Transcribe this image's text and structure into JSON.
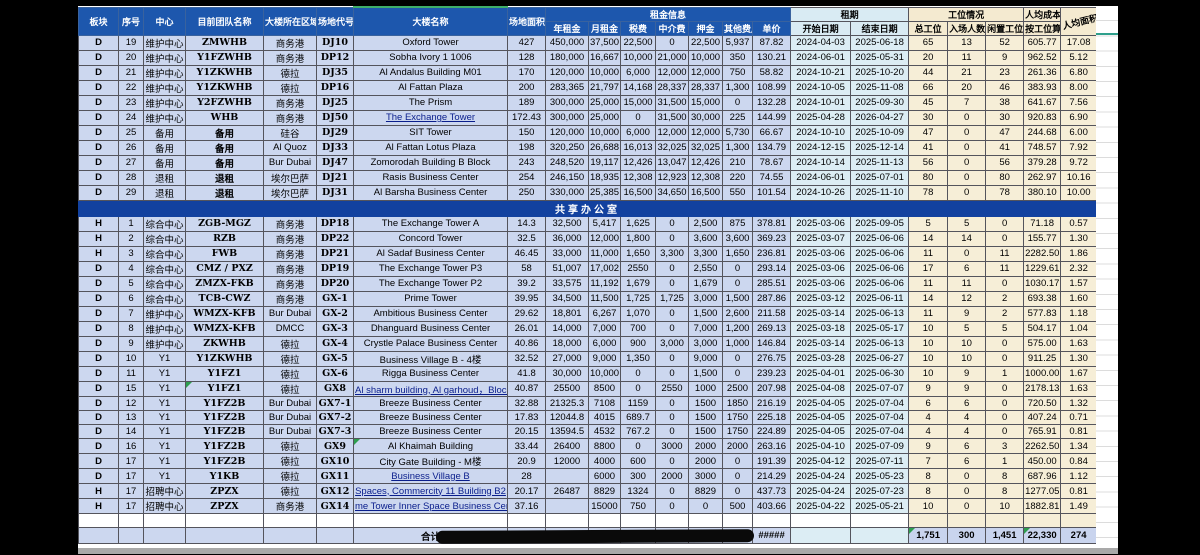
{
  "colors": {
    "header_blue": "#1d57ad",
    "separator_blue": "#12419f",
    "row_lavender": "#ccd7ef",
    "date_pale_blue": "#dcedf4",
    "seat_cream": "#f6eed7",
    "note_green": "#2e9e4f"
  },
  "sheet": {
    "header": {
      "col_bankuai": "板块",
      "col_xuhao": "序号",
      "col_zhongxin": "中心",
      "col_team": "目前团队名称",
      "col_region": "大楼所在区域",
      "col_code": "场地代号",
      "col_building": "大楼名称",
      "col_area": "场地面积",
      "group_rent": "租金信息",
      "col_annual": "年租金",
      "col_monthly": "月租金",
      "col_tax": "税费",
      "col_agency": "中介费",
      "col_deposit": "押金",
      "col_other": "其他费用",
      "col_unit": "单价",
      "group_term": "租期",
      "col_start": "开始日期",
      "col_end": "结束日期",
      "group_seats": "工位情况",
      "col_total_seats": "总工位",
      "col_people": "入场人数",
      "col_idle": "闲置工位",
      "group_cost": "人均成本",
      "col_per_seat": "按工位算",
      "col_area_pp": "人均面积"
    },
    "separator_label": "共享办公室",
    "d_rows": [
      {
        "cells": [
          "D",
          "19",
          "维护中心",
          "ZMWHB",
          "商务港",
          "DJ10",
          "Oxford Tower",
          "427",
          "450,000",
          "37,500",
          "22,500",
          "0",
          "22,500",
          "5,937",
          "87.82",
          "2024-04-03",
          "2025-06-18",
          "65",
          "13",
          "52",
          "605.77",
          "17.08"
        ],
        "link": false
      },
      {
        "cells": [
          "D",
          "20",
          "维护中心",
          "Y1FZWHB",
          "商务港",
          "DP12",
          "Sobha Ivory 1 1006",
          "128",
          "180,000",
          "16,667",
          "10,000",
          "21,000",
          "10,000",
          "350",
          "130.21",
          "2024-06-01",
          "2025-05-31",
          "20",
          "11",
          "9",
          "962.52",
          "5.12"
        ],
        "link": false
      },
      {
        "cells": [
          "D",
          "21",
          "维护中心",
          "Y1ZKWHB",
          "德拉",
          "DJ35",
          "Al Andalus Building M01",
          "170",
          "120,000",
          "10,000",
          "6,000",
          "12,000",
          "12,000",
          "750",
          "58.82",
          "2024-10-21",
          "2025-10-20",
          "44",
          "21",
          "23",
          "261.36",
          "6.80"
        ],
        "link": false
      },
      {
        "cells": [
          "D",
          "22",
          "维护中心",
          "Y1ZKWHB",
          "德拉",
          "DP16",
          "Al Fattan Plaza",
          "200",
          "283,365",
          "21,797",
          "14,168",
          "28,337",
          "28,337",
          "1,300",
          "108.99",
          "2024-10-05",
          "2025-11-08",
          "66",
          "20",
          "46",
          "383.93",
          "8.00"
        ],
        "link": false
      },
      {
        "cells": [
          "D",
          "23",
          "维护中心",
          "Y2FZWHB",
          "商务港",
          "DJ25",
          "The Prism",
          "189",
          "300,000",
          "25,000",
          "15,000",
          "31,500",
          "15,000",
          "0",
          "132.28",
          "2024-10-01",
          "2025-09-30",
          "45",
          "7",
          "38",
          "641.67",
          "7.56"
        ],
        "link": false
      },
      {
        "cells": [
          "D",
          "24",
          "维护中心",
          "WHB",
          "商务港",
          "DJ50",
          "The Exchange Tower",
          "172.43",
          "300,000",
          "25,000",
          "0",
          "31,500",
          "30,000",
          "225",
          "144.99",
          "2025-04-28",
          "2026-04-27",
          "30",
          "0",
          "30",
          "920.83",
          "6.90"
        ],
        "link": true
      },
      {
        "cells": [
          "D",
          "25",
          "备用",
          "备用",
          "硅谷",
          "DJ29",
          "SIT Tower",
          "150",
          "120,000",
          "10,000",
          "6,000",
          "12,000",
          "12,000",
          "5,730",
          "66.67",
          "2024-10-10",
          "2025-10-09",
          "47",
          "0",
          "47",
          "244.68",
          "6.00"
        ],
        "link": false
      },
      {
        "cells": [
          "D",
          "26",
          "备用",
          "备用",
          "Al Quoz",
          "DJ33",
          "Al Fattan Lotus Plaza",
          "198",
          "320,250",
          "26,688",
          "16,013",
          "32,025",
          "32,025",
          "1,300",
          "134.79",
          "2024-12-15",
          "2025-12-14",
          "41",
          "0",
          "41",
          "748.57",
          "7.92"
        ],
        "link": false
      },
      {
        "cells": [
          "D",
          "27",
          "备用",
          "备用",
          "Bur Dubai",
          "DJ47",
          "Zomorodah Building B Block",
          "243",
          "248,520",
          "19,117",
          "12,426",
          "13,047",
          "12,426",
          "210",
          "78.67",
          "2024-10-14",
          "2025-11-13",
          "56",
          "0",
          "56",
          "379.28",
          "9.72"
        ],
        "link": false
      },
      {
        "cells": [
          "D",
          "28",
          "退租",
          "退租",
          "埃尔巴萨",
          "DJ21",
          "Rasis Business Center",
          "254",
          "246,150",
          "18,935",
          "12,308",
          "12,923",
          "12,308",
          "220",
          "74.55",
          "2024-06-01",
          "2025-07-01",
          "80",
          "0",
          "80",
          "262.97",
          "10.16"
        ],
        "link": false
      },
      {
        "cells": [
          "D",
          "29",
          "退租",
          "退租",
          "埃尔巴萨",
          "DJ31",
          "Al Barsha Business Center",
          "250",
          "330,000",
          "25,385",
          "16,500",
          "34,650",
          "16,500",
          "550",
          "101.54",
          "2024-10-26",
          "2025-11-10",
          "78",
          "0",
          "78",
          "380.10",
          "10.00"
        ],
        "link": false
      }
    ],
    "h_rows": [
      {
        "cells": [
          "H",
          "1",
          "综合中心",
          "ZGB-MGZ",
          "商务港",
          "DP18",
          "The Exchange Tower A",
          "14.3",
          "32,500",
          "5,417",
          "1,625",
          "0",
          "2,500",
          "875",
          "378.81",
          "2025-03-06",
          "2025-09-05",
          "5",
          "5",
          "0",
          "71.18",
          "0.57"
        ],
        "link": false
      },
      {
        "cells": [
          "H",
          "2",
          "综合中心",
          "RZB",
          "商务港",
          "DP22",
          "Concord Tower",
          "32.5",
          "36,000",
          "12,000",
          "1,800",
          "0",
          "3,600",
          "3,600",
          "369.23",
          "2025-03-07",
          "2025-06-06",
          "14",
          "14",
          "0",
          "155.77",
          "1.30"
        ],
        "link": false
      },
      {
        "cells": [
          "H",
          "3",
          "综合中心",
          "FWB",
          "商务港",
          "DP21",
          "Al Sadaf Business Center",
          "46.45",
          "33,000",
          "11,000",
          "1,650",
          "3,300",
          "3,300",
          "1,650",
          "236.81",
          "2025-03-06",
          "2025-06-06",
          "11",
          "0",
          "11",
          "2282.50",
          "1.86"
        ],
        "link": false
      },
      {
        "cells": [
          "D",
          "4",
          "综合中心",
          "CMZ / PXZ",
          "商务港",
          "DP19",
          "The Exchange Tower P3",
          "58",
          "51,007",
          "17,002",
          "2550",
          "0",
          "2,550",
          "0",
          "293.14",
          "2025-03-06",
          "2025-06-06",
          "17",
          "6",
          "11",
          "1229.61",
          "2.32"
        ],
        "link": false
      },
      {
        "cells": [
          "D",
          "5",
          "综合中心",
          "ZMZX-FKB",
          "商务港",
          "DP20",
          "The Exchange Tower P2",
          "39.2",
          "33,575",
          "11,192",
          "1,679",
          "0",
          "1,679",
          "0",
          "285.51",
          "2025-03-06",
          "2025-06-06",
          "11",
          "11",
          "0",
          "1030.17",
          "1.57"
        ],
        "link": false
      },
      {
        "cells": [
          "D",
          "6",
          "综合中心",
          "TCB-CWZ",
          "商务港",
          "GX-1",
          "Prime Tower",
          "39.95",
          "34,500",
          "11,500",
          "1,725",
          "1,725",
          "3,000",
          "1,500",
          "287.86",
          "2025-03-12",
          "2025-06-11",
          "14",
          "12",
          "2",
          "693.38",
          "1.60"
        ],
        "link": false
      },
      {
        "cells": [
          "D",
          "7",
          "维护中心",
          "WMZX-KFB",
          "Bur Dubai",
          "GX-2",
          "Ambitious Business Center",
          "29.62",
          "18,801",
          "6,267",
          "1,070",
          "0",
          "1,500",
          "2,600",
          "211.58",
          "2025-03-14",
          "2025-06-13",
          "11",
          "9",
          "2",
          "577.83",
          "1.18"
        ],
        "link": false
      },
      {
        "cells": [
          "D",
          "8",
          "维护中心",
          "WMZX-KFB",
          "DMCC",
          "GX-3",
          "Dhanguard Business Center",
          "26.01",
          "14,000",
          "7,000",
          "700",
          "0",
          "7,000",
          "1,200",
          "269.13",
          "2025-03-18",
          "2025-05-17",
          "10",
          "5",
          "5",
          "504.17",
          "1.04"
        ],
        "link": false
      },
      {
        "cells": [
          "D",
          "9",
          "维护中心",
          "ZKWHB",
          "德拉",
          "GX-4",
          "Crystle Palace Business Center",
          "40.86",
          "18,000",
          "6,000",
          "900",
          "3,000",
          "3,000",
          "1,000",
          "146.84",
          "2025-03-14",
          "2025-06-13",
          "10",
          "10",
          "0",
          "575.00",
          "1.63"
        ],
        "link": false
      },
      {
        "cells": [
          "D",
          "10",
          "Y1",
          "Y1ZKWHB",
          "德拉",
          "GX-5",
          "Business Village B - 4楼",
          "32.52",
          "27,000",
          "9,000",
          "1,350",
          "0",
          "9,000",
          "0",
          "276.75",
          "2025-03-28",
          "2025-06-27",
          "10",
          "10",
          "0",
          "911.25",
          "1.30"
        ],
        "link": false
      },
      {
        "cells": [
          "D",
          "11",
          "Y1",
          "Y1FZ1",
          "德拉",
          "GX-6",
          "Rigga Business Center",
          "41.8",
          "30,000",
          "10,000",
          "0",
          "0",
          "1,500",
          "0",
          "239.23",
          "2025-04-01",
          "2025-06-30",
          "10",
          "9",
          "1",
          "1000.00",
          "1.67"
        ],
        "link": false
      },
      {
        "cells": [
          "D",
          "15",
          "Y1",
          "Y1FZ1",
          "德拉",
          "GX8",
          "Al sharm building, Al garhoud，Block",
          "40.87",
          "25500",
          "8500",
          "0",
          "2550",
          "1000",
          "2500",
          "207.98",
          "2025-04-08",
          "2025-07-07",
          "9",
          "9",
          "0",
          "2178.13",
          "1.63"
        ],
        "link": true,
        "notes": [
          3
        ]
      },
      {
        "cells": [
          "D",
          "12",
          "Y1",
          "Y1FZ2B",
          "Bur Dubai",
          "GX7-1",
          "Breeze Business Center",
          "32.88",
          "21325.3",
          "7108",
          "1159",
          "0",
          "1500",
          "1850",
          "216.19",
          "2025-04-05",
          "2025-07-04",
          "6",
          "6",
          "0",
          "720.50",
          "1.32"
        ],
        "link": false
      },
      {
        "cells": [
          "D",
          "13",
          "Y1",
          "Y1FZ2B",
          "Bur Dubai",
          "GX7-2",
          "Breeze Business Center",
          "17.83",
          "12044.8",
          "4015",
          "689.7",
          "0",
          "1500",
          "1750",
          "225.18",
          "2025-04-05",
          "2025-07-04",
          "4",
          "4",
          "0",
          "407.24",
          "0.71"
        ],
        "link": false
      },
      {
        "cells": [
          "D",
          "14",
          "Y1",
          "Y1FZ2B",
          "Bur Dubai",
          "GX7-3",
          "Breeze Business Center",
          "20.15",
          "13594.5",
          "4532",
          "767.2",
          "0",
          "1500",
          "1750",
          "224.89",
          "2025-04-05",
          "2025-07-04",
          "4",
          "4",
          "0",
          "765.91",
          "0.81"
        ],
        "link": false
      },
      {
        "cells": [
          "D",
          "16",
          "Y1",
          "Y1FZ2B",
          "德拉",
          "GX9",
          "Al Khaimah Building",
          "33.44",
          "26400",
          "8800",
          "0",
          "3000",
          "2000",
          "2000",
          "263.16",
          "2025-04-10",
          "2025-07-09",
          "9",
          "6",
          "3",
          "2262.50",
          "1.34"
        ],
        "link": false,
        "notes": [
          6
        ]
      },
      {
        "cells": [
          "D",
          "17",
          "Y1",
          "Y1FZ2B",
          "德拉",
          "GX10",
          "City Gate Building - M楼",
          "20.9",
          "12000",
          "4000",
          "600",
          "0",
          "2000",
          "0",
          "191.39",
          "2025-04-12",
          "2025-07-11",
          "7",
          "6",
          "1",
          "450.00",
          "0.84"
        ],
        "link": false
      },
      {
        "cells": [
          "D",
          "17",
          "Y1",
          "Y1KB",
          "德拉",
          "GX11",
          "Business Village B",
          "28",
          "",
          "6000",
          "300",
          "2000",
          "3000",
          "0",
          "214.29",
          "2025-04-24",
          "2025-05-23",
          "8",
          "0",
          "8",
          "687.96",
          "1.12"
        ],
        "link": true
      },
      {
        "cells": [
          "H",
          "17",
          "招聘中心",
          "ZPZX",
          "德拉",
          "GX12",
          "Spaces, Commercity 11 Building B2",
          "20.17",
          "26487",
          "8829",
          "1324",
          "0",
          "8829",
          "0",
          "437.73",
          "2025-04-24",
          "2025-07-23",
          "8",
          "0",
          "8",
          "1277.05",
          "0.81"
        ],
        "link": true
      },
      {
        "cells": [
          "H",
          "17",
          "招聘中心",
          "ZPZX",
          "商务港",
          "GX14",
          "me Tower Inner Space Business Cen",
          "37.16",
          "",
          "15000",
          "750",
          "0",
          "0",
          "500",
          "403.66",
          "2025-04-22",
          "2025-05-21",
          "10",
          "0",
          "10",
          "1882.81",
          "1.49"
        ],
        "link": true
      }
    ],
    "total": {
      "label": "合计",
      "peek": [
        "6,653",
        "#######",
        "#####",
        "#####",
        "#####",
        "70,273"
      ],
      "unit": "#####",
      "seats": "1,751",
      "people": "300",
      "idle": "1,451",
      "per_seat": "22,330",
      "area_pp": "274"
    }
  }
}
